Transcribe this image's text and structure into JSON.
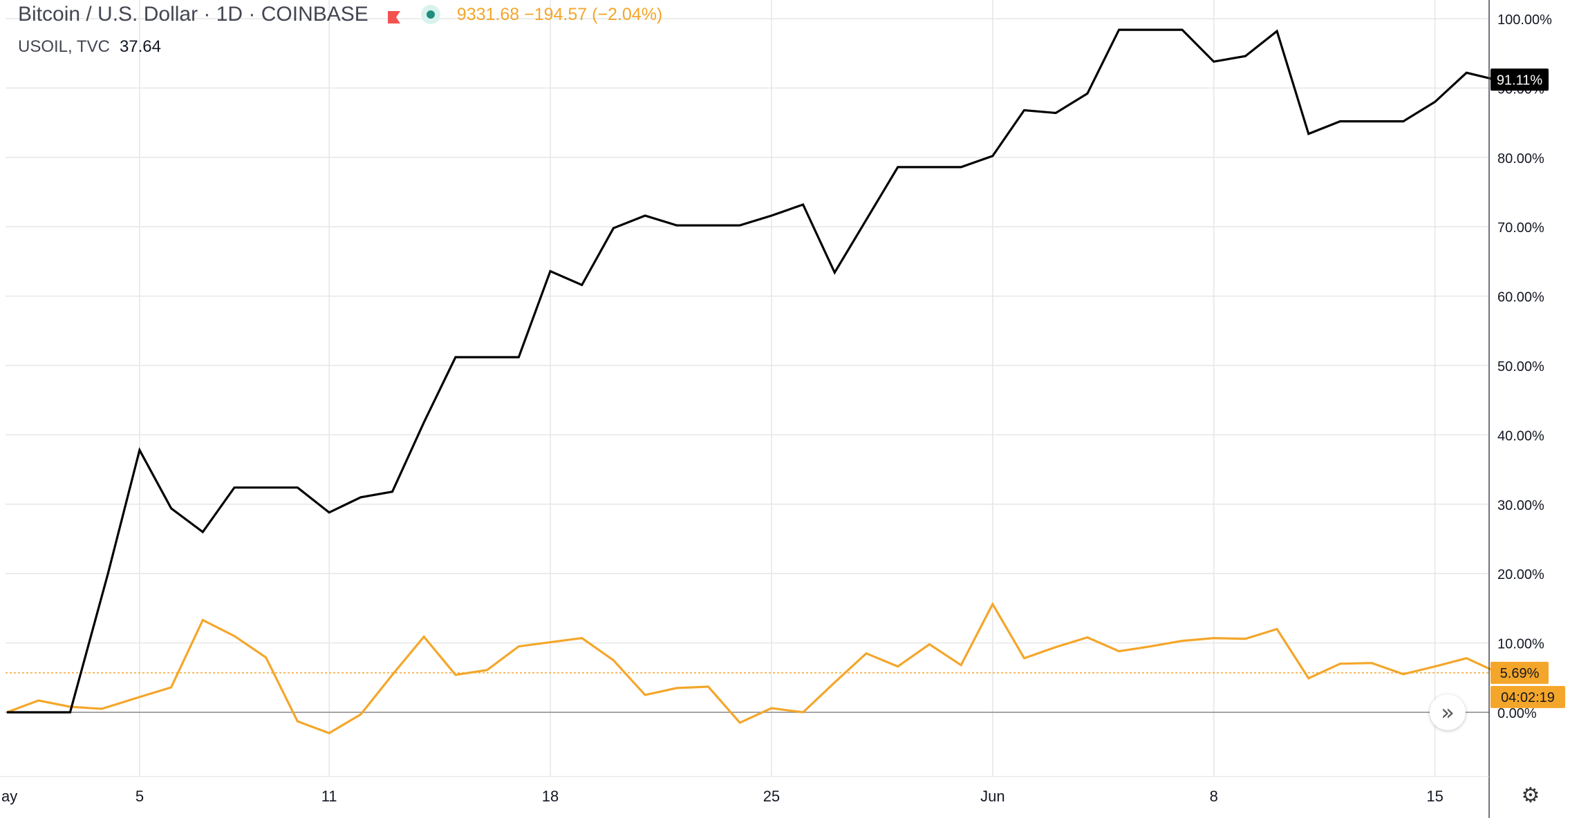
{
  "legend": {
    "main_title": "Bitcoin / U.S. Dollar · 1D · COINBASE",
    "main_quote": "9331.68 −194.57 (−2.04%)",
    "compare_symbol": "USOIL, TVC",
    "compare_value": "37.64"
  },
  "price_labels": {
    "btc_last": "91.11%",
    "oil_last": "5.69%",
    "countdown": "04:02:19"
  },
  "icons": {
    "flag": "flag-icon",
    "live_dot": "live-status-icon",
    "scroll": "scroll-to-realtime-icon",
    "settings": "gear-icon"
  },
  "colors": {
    "btc": "#000000",
    "oil": "#f4a62a",
    "grid": "#e6e6e6",
    "axis_text": "#131722"
  },
  "chart_data": {
    "type": "line",
    "x_ticks": [
      {
        "day": 0,
        "label": "ay"
      },
      {
        "day": 4,
        "label": "5"
      },
      {
        "day": 10,
        "label": "11"
      },
      {
        "day": 17,
        "label": "18"
      },
      {
        "day": 24,
        "label": "25"
      },
      {
        "day": 31,
        "label": "Jun"
      },
      {
        "day": 38,
        "label": "8"
      },
      {
        "day": 45,
        "label": "15"
      }
    ],
    "y_ticks": [
      "100.00%",
      "90.00%",
      "80.00%",
      "70.00%",
      "60.00%",
      "50.00%",
      "40.00%",
      "30.00%",
      "20.00%",
      "10.00%",
      "0.00%"
    ],
    "y_tick_values": [
      100,
      90,
      80,
      70,
      60,
      50,
      40,
      30,
      20,
      10,
      0
    ],
    "ylim": [
      -12,
      102
    ],
    "xlim": [
      -0.2,
      47.7
    ],
    "series": [
      {
        "name": "Bitcoin / U.S. Dollar",
        "color": "#000000",
        "x": [
          -0.2,
          1.8,
          3,
          4,
          5,
          6,
          7,
          8,
          9,
          10,
          11,
          12,
          13,
          14,
          15,
          16,
          17,
          18,
          19,
          20,
          21,
          22,
          23,
          24,
          25,
          26,
          27,
          28,
          29,
          30,
          31,
          32,
          33,
          34,
          35,
          36,
          37,
          38,
          39,
          40,
          41,
          42,
          43,
          44,
          45,
          46,
          47
        ],
        "values": [
          0,
          0,
          20,
          37.8,
          29.4,
          26,
          32.4,
          32.4,
          32.4,
          28.8,
          31,
          31.8,
          41.8,
          51.2,
          51.2,
          51.2,
          63.6,
          61.6,
          69.8,
          71.6,
          70.2,
          70.2,
          70.2,
          71.6,
          73.2,
          63.4,
          71,
          78.6,
          78.6,
          78.6,
          80.2,
          86.8,
          86.4,
          89.2,
          98.4,
          98.4,
          98.4,
          93.8,
          94.6,
          98.2,
          83.4,
          85.2,
          85.2,
          85.2,
          88,
          92.2,
          91.11
        ]
      },
      {
        "name": "USOIL, TVC",
        "color": "#f4a62a",
        "x": [
          -0.2,
          0.8,
          1.8,
          2.8,
          4,
          5,
          6,
          7,
          8,
          9,
          10,
          11,
          12,
          13,
          14,
          15,
          16,
          17,
          18,
          19,
          20,
          21,
          22,
          23,
          24,
          25,
          26,
          27,
          28,
          29,
          30,
          31,
          32,
          33,
          34,
          35,
          36,
          37,
          38,
          39,
          40,
          41,
          42,
          43,
          44,
          45,
          46,
          47
        ],
        "values": [
          0,
          1.7,
          0.8,
          0.5,
          2.2,
          3.6,
          13.3,
          11,
          7.9,
          -1.3,
          -3,
          -0.3,
          5.4,
          10.9,
          5.4,
          6.1,
          9.5,
          10.1,
          10.7,
          7.5,
          2.5,
          3.5,
          3.7,
          -1.5,
          0.6,
          0,
          4.3,
          8.5,
          6.6,
          9.8,
          6.8,
          15.6,
          7.8,
          9.4,
          10.8,
          8.8,
          9.5,
          10.3,
          10.7,
          10.6,
          12,
          4.9,
          7,
          7.1,
          5.5,
          6.6,
          7.8,
          5.69
        ]
      }
    ]
  }
}
